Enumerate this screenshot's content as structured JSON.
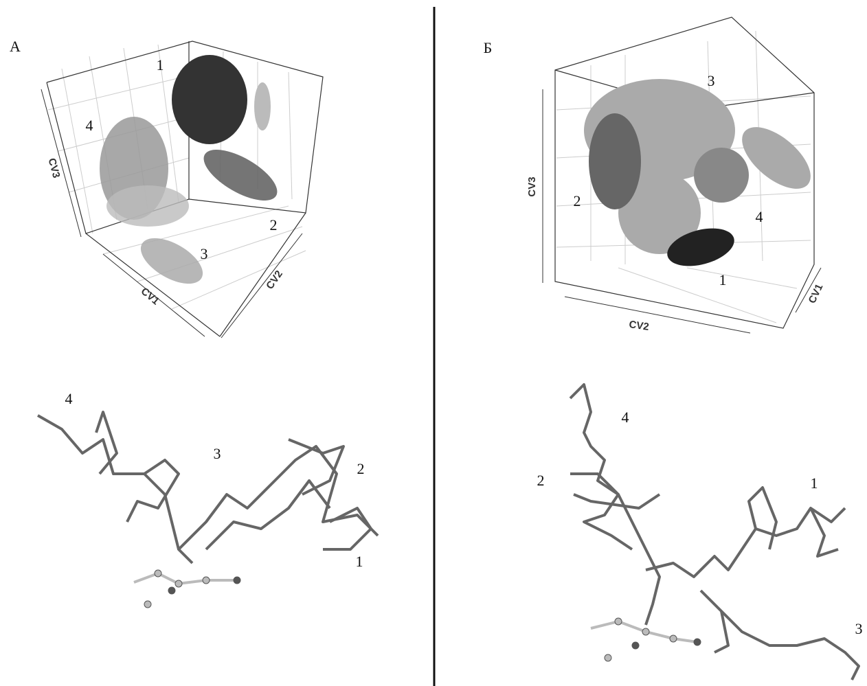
{
  "panels": [
    {
      "label": "А",
      "plot": {
        "axes": [
          "CV1",
          "CV2",
          "CV3"
        ],
        "clusters": [
          "1",
          "2",
          "3",
          "4"
        ]
      },
      "structure": {
        "labels": [
          "1",
          "2",
          "3",
          "4"
        ]
      }
    },
    {
      "label": "Б",
      "plot": {
        "axes": [
          "CV1",
          "CV2",
          "CV3"
        ],
        "clusters": [
          "1",
          "2",
          "3",
          "4"
        ]
      },
      "structure": {
        "labels": [
          "1",
          "2",
          "3",
          "4"
        ]
      }
    }
  ]
}
